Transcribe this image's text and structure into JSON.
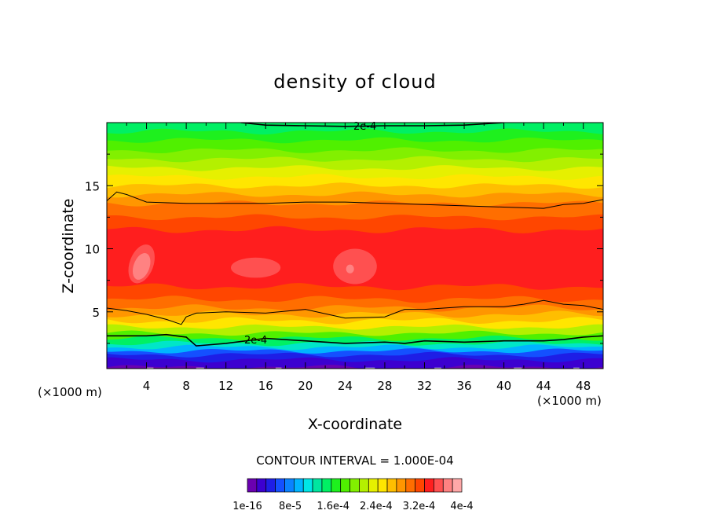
{
  "chart_data": {
    "type": "heatmap",
    "title": "density of cloud",
    "xlabel": "X-coordinate",
    "ylabel": "Z-coordinate",
    "x_unit_left": "(×1000 m)",
    "x_unit_right": "(×1000 m)",
    "xlim": [
      0,
      50
    ],
    "ylim": [
      0.5,
      20
    ],
    "x_ticks": [
      4,
      8,
      12,
      16,
      20,
      24,
      28,
      32,
      36,
      40,
      44,
      48
    ],
    "y_ticks": [
      5,
      10,
      15
    ],
    "contour_interval_text": "CONTOUR INTERVAL = 1.000E-04",
    "contour_labels": [
      "2e-4",
      "2e-4"
    ],
    "colorbar_labels": [
      "1e-16",
      "8e-5",
      "1.6e-4",
      "2.4e-4",
      "3.2e-4",
      "4e-4"
    ],
    "colorbar_colors": [
      "#6a00b0",
      "#3c00d0",
      "#1e1ee6",
      "#1450ff",
      "#0a82ff",
      "#00b4ff",
      "#00e6e6",
      "#00e6a0",
      "#00f064",
      "#1ef01e",
      "#50f000",
      "#82f000",
      "#b4f000",
      "#e6f000",
      "#ffe600",
      "#ffbe00",
      "#ff9600",
      "#ff6e00",
      "#ff4600",
      "#ff1e1e",
      "#ff5050",
      "#ff8282",
      "#ffa8a8"
    ],
    "bands": [
      {
        "z_top": 0.6,
        "color": "#6a00b0"
      },
      {
        "z_top": 1.2,
        "color": "#3c00d0"
      },
      {
        "z_top": 1.6,
        "color": "#1e1ee6"
      },
      {
        "z_top": 1.9,
        "color": "#1450ff"
      },
      {
        "z_top": 2.2,
        "color": "#00b4ff"
      },
      {
        "z_top": 2.5,
        "color": "#00e6c8"
      },
      {
        "z_top": 2.9,
        "color": "#00f064"
      },
      {
        "z_top": 3.3,
        "color": "#50f000"
      },
      {
        "z_top": 3.8,
        "color": "#b4f000"
      },
      {
        "z_top": 4.3,
        "color": "#ffe600"
      },
      {
        "z_top": 4.8,
        "color": "#ffbe00"
      },
      {
        "z_top": 5.3,
        "color": "#ff9600"
      },
      {
        "z_top": 6.0,
        "color": "#ff6e00"
      },
      {
        "z_top": 7.0,
        "color": "#ff4600"
      },
      {
        "z_top": 11.5,
        "color": "#ff1e1e"
      },
      {
        "z_top": 12.5,
        "color": "#ff4600"
      },
      {
        "z_top": 13.6,
        "color": "#ff6e00"
      },
      {
        "z_top": 14.3,
        "color": "#ff9600"
      },
      {
        "z_top": 15.0,
        "color": "#ffbe00"
      },
      {
        "z_top": 15.7,
        "color": "#ffe600"
      },
      {
        "z_top": 16.4,
        "color": "#e6f000"
      },
      {
        "z_top": 17.1,
        "color": "#b4f000"
      },
      {
        "z_top": 17.8,
        "color": "#82f000"
      },
      {
        "z_top": 18.6,
        "color": "#50f000"
      },
      {
        "z_top": 19.3,
        "color": "#1ef01e"
      },
      {
        "z_top": 20.0,
        "color": "#00f064"
      }
    ],
    "hotspots": [
      {
        "x": 3.5,
        "z": 8.8,
        "rx": 1.2,
        "rz": 1.6,
        "color": "#ff5050"
      },
      {
        "x": 3.5,
        "z": 8.6,
        "rx": 0.8,
        "rz": 1.1,
        "color": "#ff8282"
      },
      {
        "x": 15.0,
        "z": 8.5,
        "rx": 2.5,
        "rz": 0.8,
        "color": "#ff5050"
      },
      {
        "x": 25.0,
        "z": 8.6,
        "rx": 2.2,
        "rz": 1.4,
        "color": "#ff5050"
      },
      {
        "x": 24.5,
        "z": 8.4,
        "rx": 0.4,
        "rz": 0.35,
        "color": "#ff8282"
      }
    ],
    "contours": [
      {
        "label": "2e-4",
        "points": [
          [
            13.5,
            20.0
          ],
          [
            16,
            19.8
          ],
          [
            20,
            19.75
          ],
          [
            24,
            19.7
          ],
          [
            28,
            19.75
          ],
          [
            32,
            19.75
          ],
          [
            36,
            19.8
          ],
          [
            40,
            20.0
          ]
        ]
      },
      {
        "label": "",
        "points": [
          [
            0,
            13.8
          ],
          [
            1,
            14.5
          ],
          [
            2,
            14.3
          ],
          [
            4,
            13.7
          ],
          [
            8,
            13.6
          ],
          [
            12,
            13.6
          ],
          [
            16,
            13.6
          ],
          [
            20,
            13.7
          ],
          [
            24,
            13.7
          ],
          [
            28,
            13.6
          ],
          [
            32,
            13.5
          ],
          [
            36,
            13.4
          ],
          [
            40,
            13.3
          ],
          [
            44,
            13.2
          ],
          [
            46,
            13.5
          ],
          [
            48,
            13.6
          ],
          [
            50,
            13.9
          ]
        ]
      },
      {
        "label": "",
        "points": [
          [
            0,
            5.3
          ],
          [
            2,
            5.1
          ],
          [
            4,
            4.8
          ],
          [
            6,
            4.4
          ],
          [
            7.5,
            4.0
          ],
          [
            8,
            4.6
          ],
          [
            9,
            4.9
          ],
          [
            12,
            5.0
          ],
          [
            16,
            4.9
          ],
          [
            20,
            5.2
          ],
          [
            24,
            4.5
          ],
          [
            28,
            4.6
          ],
          [
            30,
            5.2
          ],
          [
            32,
            5.2
          ],
          [
            36,
            5.4
          ],
          [
            40,
            5.4
          ],
          [
            42,
            5.6
          ],
          [
            44,
            5.9
          ],
          [
            46,
            5.6
          ],
          [
            48,
            5.5
          ],
          [
            50,
            5.2
          ]
        ]
      },
      {
        "label": "2e-4",
        "points": [
          [
            0,
            3.1
          ],
          [
            4,
            3.1
          ],
          [
            6,
            3.2
          ],
          [
            8,
            3.0
          ],
          [
            9,
            2.3
          ],
          [
            12,
            2.5
          ],
          [
            16,
            2.9
          ],
          [
            20,
            2.7
          ],
          [
            24,
            2.5
          ],
          [
            28,
            2.6
          ],
          [
            30,
            2.5
          ],
          [
            32,
            2.7
          ],
          [
            36,
            2.6
          ],
          [
            40,
            2.7
          ],
          [
            44,
            2.7
          ],
          [
            46,
            2.8
          ],
          [
            48,
            3.0
          ],
          [
            50,
            3.1
          ]
        ]
      }
    ]
  }
}
